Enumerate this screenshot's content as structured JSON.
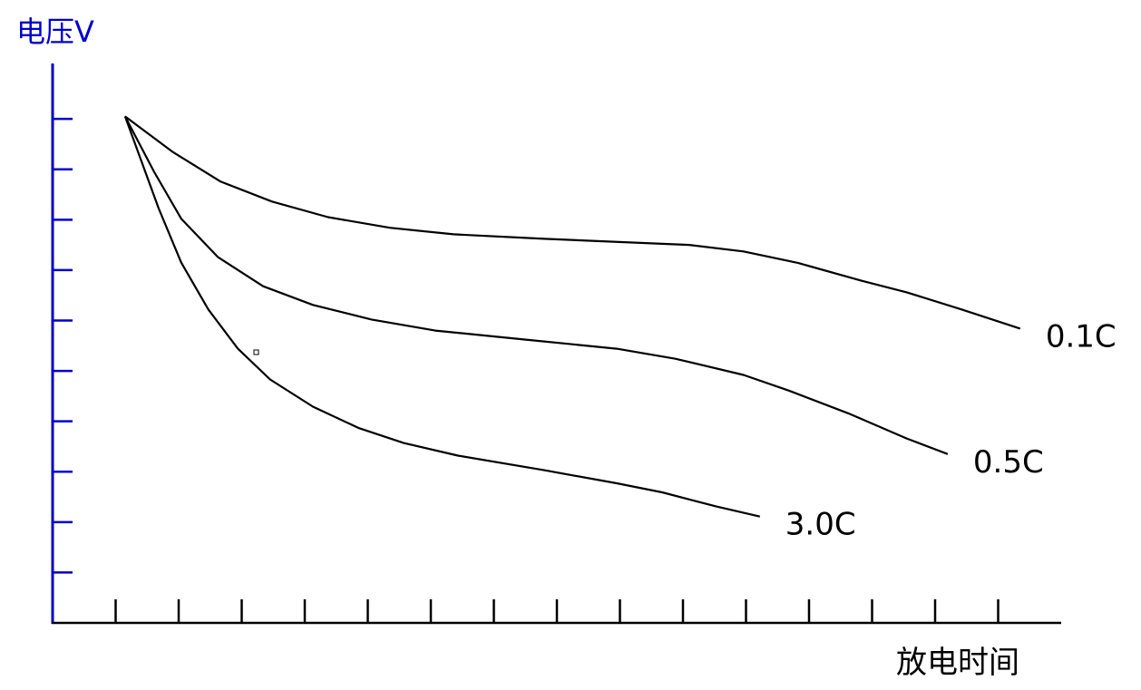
{
  "chart_data": {
    "type": "line",
    "y_label": "电压V",
    "x_label": "放电时间",
    "xlim": [
      0,
      16
    ],
    "ylim": [
      0,
      11.1
    ],
    "xticks": [
      1,
      2,
      3,
      4,
      5,
      6,
      7,
      8,
      9,
      10,
      11,
      12,
      13,
      14,
      15
    ],
    "yticks": [
      1,
      2,
      3,
      4,
      5,
      6,
      7,
      8,
      9,
      10
    ],
    "series": [
      {
        "name": "0.1C",
        "color": "#000000",
        "x": [
          1.15,
          1.9,
          2.66,
          3.48,
          4.37,
          5.35,
          6.36,
          7.8,
          10.1,
          10.96,
          11.83,
          12.83,
          13.55,
          14.42,
          15.35
        ],
        "values": [
          10.05,
          9.35,
          8.76,
          8.36,
          8.05,
          7.84,
          7.71,
          7.62,
          7.5,
          7.37,
          7.14,
          6.79,
          6.56,
          6.22,
          5.84
        ]
      },
      {
        "name": "0.5C",
        "color": "#000000",
        "x": [
          1.15,
          1.61,
          2.04,
          2.62,
          3.34,
          4.13,
          5.06,
          6.07,
          7.51,
          8.95,
          9.88,
          10.96,
          11.68,
          12.62,
          13.55,
          14.2
        ],
        "values": [
          10.05,
          8.95,
          8.02,
          7.26,
          6.68,
          6.31,
          6.02,
          5.8,
          5.62,
          5.44,
          5.24,
          4.92,
          4.61,
          4.16,
          3.66,
          3.35
        ]
      },
      {
        "name": "3.0C",
        "color": "#000000",
        "x": [
          1.15,
          1.68,
          2.04,
          2.47,
          2.94,
          3.45,
          4.13,
          4.85,
          5.57,
          6.43,
          7.8,
          8.95,
          9.67,
          10.53,
          11.22
        ],
        "values": [
          10.05,
          8.23,
          7.15,
          6.22,
          5.44,
          4.83,
          4.29,
          3.87,
          3.57,
          3.32,
          3.03,
          2.77,
          2.59,
          2.31,
          2.11
        ]
      }
    ]
  }
}
